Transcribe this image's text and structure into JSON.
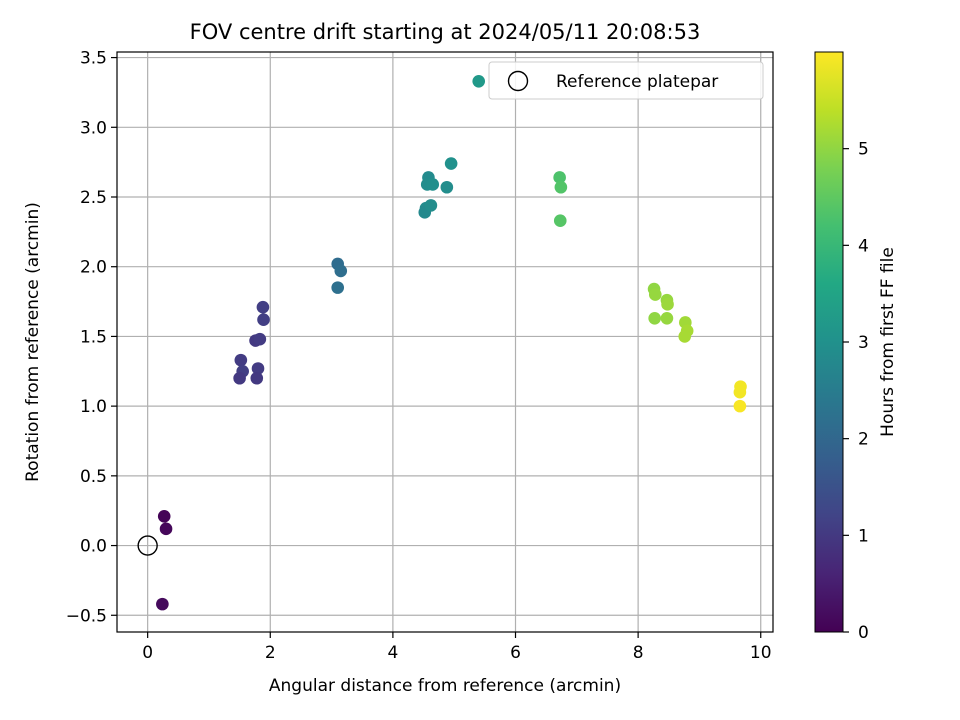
{
  "chart_data": {
    "type": "scatter",
    "title": "FOV centre drift starting at 2024/05/11 20:08:53",
    "xlabel": "Angular distance from reference (arcmin)",
    "ylabel": "Rotation from reference (arcmin)",
    "xlim": [
      -0.5,
      10.2
    ],
    "ylim": [
      -0.62,
      3.54
    ],
    "x_ticks": [
      0,
      2,
      4,
      6,
      8,
      10
    ],
    "y_ticks": [
      -0.5,
      0.0,
      0.5,
      1.0,
      1.5,
      2.0,
      2.5,
      3.0,
      3.5
    ],
    "x_tick_labels": [
      "0",
      "2",
      "4",
      "6",
      "8",
      "10"
    ],
    "y_tick_labels": [
      "−0.5",
      "0.0",
      "0.5",
      "1.0",
      "1.5",
      "2.0",
      "2.5",
      "3.0",
      "3.5"
    ],
    "grid": true,
    "legend": {
      "position": "top-right",
      "entries": [
        {
          "label": "Reference platepar",
          "marker": "open-circle"
        }
      ]
    },
    "reference_point": {
      "x": 0.0,
      "y": 0.0
    },
    "colorbar": {
      "label": "Hours from first FF file",
      "range": [
        0,
        6.0
      ],
      "ticks": [
        0,
        1,
        2,
        3,
        4,
        5
      ],
      "tick_labels": [
        "0",
        "1",
        "2",
        "3",
        "4",
        "5"
      ],
      "colormap": "viridis"
    },
    "points": [
      {
        "x": 0.27,
        "y": 0.21,
        "c": 0.05
      },
      {
        "x": 0.3,
        "y": 0.12,
        "c": 0.1
      },
      {
        "x": 0.24,
        "y": -0.42,
        "c": 0.15
      },
      {
        "x": 1.52,
        "y": 1.33,
        "c": 1.05
      },
      {
        "x": 1.55,
        "y": 1.25,
        "c": 1.1
      },
      {
        "x": 1.5,
        "y": 1.2,
        "c": 1.0
      },
      {
        "x": 1.76,
        "y": 1.47,
        "c": 1.0
      },
      {
        "x": 1.83,
        "y": 1.48,
        "c": 1.05
      },
      {
        "x": 1.8,
        "y": 1.27,
        "c": 1.05
      },
      {
        "x": 1.78,
        "y": 1.2,
        "c": 1.0
      },
      {
        "x": 1.88,
        "y": 1.71,
        "c": 1.1
      },
      {
        "x": 1.89,
        "y": 1.62,
        "c": 1.1
      },
      {
        "x": 3.1,
        "y": 2.02,
        "c": 2.1
      },
      {
        "x": 3.15,
        "y": 1.97,
        "c": 2.15
      },
      {
        "x": 3.1,
        "y": 1.85,
        "c": 2.2
      },
      {
        "x": 4.58,
        "y": 2.64,
        "c": 2.85
      },
      {
        "x": 4.56,
        "y": 2.59,
        "c": 2.9
      },
      {
        "x": 4.65,
        "y": 2.59,
        "c": 2.95
      },
      {
        "x": 4.88,
        "y": 2.57,
        "c": 2.9
      },
      {
        "x": 4.95,
        "y": 2.74,
        "c": 3.0
      },
      {
        "x": 4.54,
        "y": 2.42,
        "c": 2.85
      },
      {
        "x": 4.52,
        "y": 2.39,
        "c": 2.8
      },
      {
        "x": 4.62,
        "y": 2.44,
        "c": 2.9
      },
      {
        "x": 5.4,
        "y": 3.33,
        "c": 3.2
      },
      {
        "x": 6.72,
        "y": 2.64,
        "c": 4.3
      },
      {
        "x": 6.74,
        "y": 2.57,
        "c": 4.35
      },
      {
        "x": 6.73,
        "y": 2.33,
        "c": 4.4
      },
      {
        "x": 8.26,
        "y": 1.84,
        "c": 5.0
      },
      {
        "x": 8.28,
        "y": 1.8,
        "c": 5.05
      },
      {
        "x": 8.47,
        "y": 1.76,
        "c": 5.05
      },
      {
        "x": 8.48,
        "y": 1.73,
        "c": 5.1
      },
      {
        "x": 8.27,
        "y": 1.63,
        "c": 5.0
      },
      {
        "x": 8.47,
        "y": 1.63,
        "c": 5.05
      },
      {
        "x": 8.77,
        "y": 1.6,
        "c": 5.15
      },
      {
        "x": 8.8,
        "y": 1.54,
        "c": 5.2
      },
      {
        "x": 8.76,
        "y": 1.5,
        "c": 5.2
      },
      {
        "x": 9.67,
        "y": 1.14,
        "c": 5.9
      },
      {
        "x": 9.66,
        "y": 1.1,
        "c": 5.9
      },
      {
        "x": 9.66,
        "y": 1.0,
        "c": 5.95
      }
    ]
  }
}
